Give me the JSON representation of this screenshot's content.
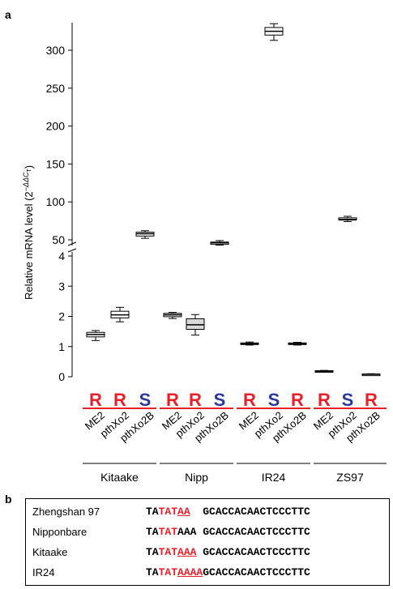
{
  "panel_a_label": "a",
  "panel_b_label": "b",
  "chart_data": {
    "type": "box",
    "ylabel": "Relative mRNA level (2",
    "ylabel_sup": "−ΔΔC",
    "ylabel_sub": "T",
    "ylabel_close": ")",
    "axis_break": true,
    "lower_ylim": [
      0,
      4
    ],
    "upper_ylim": [
      50,
      330
    ],
    "lower_ticks": [
      0,
      1,
      2,
      3,
      4
    ],
    "upper_ticks": [
      50,
      100,
      150,
      200,
      250,
      300
    ],
    "resistance_colors": {
      "R": "#e8202a",
      "S": "#2b3a9a"
    },
    "groups": [
      {
        "name": "Kitaake",
        "samples": [
          {
            "label": "ME2",
            "res": "R",
            "fill": "#ffffff",
            "min": 1.2,
            "q1": 1.32,
            "median": 1.4,
            "q3": 1.47,
            "max": 1.53
          },
          {
            "label": "pthXo2",
            "res": "R",
            "fill": "#ffffff",
            "min": 1.82,
            "q1": 1.95,
            "median": 2.05,
            "q3": 2.17,
            "max": 2.3
          },
          {
            "label": "pthXo2B",
            "res": "S",
            "fill": "#ffffff",
            "min": 52,
            "q1": 55,
            "median": 58,
            "q3": 60,
            "max": 62
          }
        ]
      },
      {
        "name": "Nipp",
        "samples": [
          {
            "label": "ME2",
            "res": "R",
            "fill": "#ffffff",
            "min": 1.93,
            "q1": 1.99,
            "median": 2.05,
            "q3": 2.1,
            "max": 2.13
          },
          {
            "label": "pthXo2",
            "res": "R",
            "fill": "#d9d9d9",
            "min": 1.38,
            "q1": 1.57,
            "median": 1.72,
            "q3": 1.92,
            "max": 2.06
          },
          {
            "label": "pthXo2B",
            "res": "S",
            "fill": "#ffffff",
            "min": 43,
            "q1": 44,
            "median": 46,
            "q3": 47,
            "max": 49
          }
        ]
      },
      {
        "name": "IR24",
        "samples": [
          {
            "label": "ME2",
            "res": "R",
            "fill": "#ffffff",
            "min": 1.05,
            "q1": 1.07,
            "median": 1.09,
            "q3": 1.12,
            "max": 1.15
          },
          {
            "label": "pthXo2",
            "res": "S",
            "fill": "#ffffff",
            "min": 313,
            "q1": 320,
            "median": 325,
            "q3": 330,
            "max": 335
          },
          {
            "label": "pthXo2B",
            "res": "R",
            "fill": "#ffffff",
            "min": 1.05,
            "q1": 1.07,
            "median": 1.09,
            "q3": 1.12,
            "max": 1.14
          }
        ]
      },
      {
        "name": "ZS97",
        "samples": [
          {
            "label": "ME2",
            "res": "R",
            "fill": "#ffffff",
            "min": 0.16,
            "q1": 0.17,
            "median": 0.18,
            "q3": 0.2,
            "max": 0.21
          },
          {
            "label": "pthXo2",
            "res": "S",
            "fill": "#ffffff",
            "min": 74,
            "q1": 76,
            "median": 77,
            "q3": 79,
            "max": 81
          },
          {
            "label": "pthXo2B",
            "res": "R",
            "fill": "#ffffff",
            "min": 0.07,
            "q1": 0.08,
            "median": 0.08,
            "q3": 0.09,
            "max": 0.1
          }
        ]
      }
    ]
  },
  "sequences": [
    {
      "name": "Zhengshan 97",
      "parts": [
        {
          "t": "TA",
          "c": ""
        },
        {
          "t": "TAT",
          "c": "red"
        },
        {
          "t": "AA",
          "c": "red ul"
        },
        {
          "t": "  GCACCACAACTCCCTTC",
          "c": ""
        }
      ]
    },
    {
      "name": "Nipponbare",
      "parts": [
        {
          "t": "TA",
          "c": ""
        },
        {
          "t": "TAT",
          "c": "red"
        },
        {
          "t": "AAA",
          "c": ""
        },
        {
          "t": " GCACCACAACTCCCTTC",
          "c": ""
        }
      ]
    },
    {
      "name": "Kitaake",
      "parts": [
        {
          "t": "TA",
          "c": ""
        },
        {
          "t": "TAT",
          "c": "red"
        },
        {
          "t": "AAA",
          "c": "red ul"
        },
        {
          "t": " GCACCACAACTCCCTTC",
          "c": ""
        }
      ]
    },
    {
      "name": "IR24",
      "parts": [
        {
          "t": "TA",
          "c": ""
        },
        {
          "t": "TAT",
          "c": "red"
        },
        {
          "t": "AAAA",
          "c": "red ul"
        },
        {
          "t": "GCACCACAACTCCCTTC",
          "c": ""
        }
      ]
    }
  ]
}
